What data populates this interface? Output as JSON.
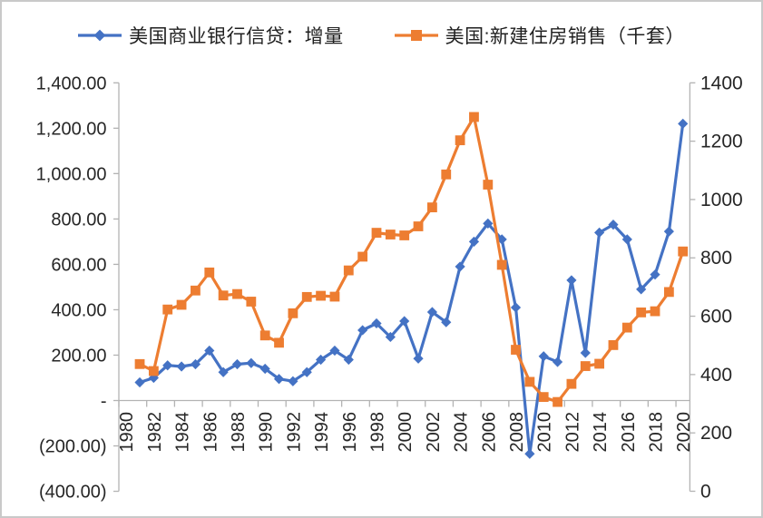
{
  "chart": {
    "background": "#ffffff",
    "border_color": "#c9c9c9",
    "text_color": "#262626",
    "axis_color": "#b3b3b3"
  },
  "legend": {
    "items": [
      {
        "label": "美国商业银行信贷：增量",
        "color": "#4472C4",
        "marker": "diamond"
      },
      {
        "label": "美国:新建住房销售（千套）",
        "color": "#ED7D31",
        "marker": "square"
      }
    ]
  },
  "axes": {
    "left": {
      "ticks": [
        {
          "label": "1,400.00",
          "value": 1400
        },
        {
          "label": "1,200.00",
          "value": 1200
        },
        {
          "label": "1,000.00",
          "value": 1000
        },
        {
          "label": "800.00",
          "value": 800
        },
        {
          "label": "600.00",
          "value": 600
        },
        {
          "label": "400.00",
          "value": 400
        },
        {
          "label": "200.00",
          "value": 200
        },
        {
          "label": "-",
          "value": 0
        },
        {
          "label": "(200.00)",
          "value": -200
        },
        {
          "label": "(400.00)",
          "value": -400
        }
      ]
    },
    "right": {
      "ticks": [
        {
          "label": "1400",
          "value": 1400
        },
        {
          "label": "1200",
          "value": 1200
        },
        {
          "label": "1000",
          "value": 1000
        },
        {
          "label": "800",
          "value": 800
        },
        {
          "label": "600",
          "value": 600
        },
        {
          "label": "400",
          "value": 400
        },
        {
          "label": "200",
          "value": 200
        },
        {
          "label": "0",
          "value": 0
        }
      ]
    },
    "x": {
      "labels": [
        "1980",
        "1982",
        "1984",
        "1986",
        "1988",
        "1990",
        "1992",
        "1994",
        "1996",
        "1998",
        "2000",
        "2002",
        "2004",
        "2006",
        "2008",
        "2010",
        "2012",
        "2014",
        "2016",
        "2018",
        "2020"
      ]
    }
  },
  "chart_data": {
    "type": "line",
    "title": "",
    "grid": false,
    "legend_position": "top",
    "x_categories": [
      1980,
      1981,
      1982,
      1983,
      1984,
      1985,
      1986,
      1987,
      1988,
      1989,
      1990,
      1991,
      1992,
      1993,
      1994,
      1995,
      1996,
      1997,
      1998,
      1999,
      2000,
      2001,
      2002,
      2003,
      2004,
      2005,
      2006,
      2007,
      2008,
      2009,
      2010,
      2011,
      2012,
      2013,
      2014,
      2015,
      2016,
      2017,
      2018,
      2019,
      2020
    ],
    "x": [
      1981,
      1982,
      1983,
      1984,
      1985,
      1986,
      1987,
      1988,
      1989,
      1990,
      1991,
      1992,
      1993,
      1994,
      1995,
      1996,
      1997,
      1998,
      1999,
      2000,
      2001,
      2002,
      2003,
      2004,
      2005,
      2006,
      2007,
      2008,
      2009,
      2010,
      2011,
      2012,
      2013,
      2014,
      2015,
      2016,
      2017,
      2018,
      2019,
      2020
    ],
    "left_ylim": [
      -400,
      1400
    ],
    "right_ylim": [
      0,
      1400
    ],
    "series": [
      {
        "name": "美国商业银行信贷：增量",
        "axis": "left",
        "color": "#4472C4",
        "marker": "diamond",
        "values": [
          80,
          100,
          155,
          150,
          160,
          220,
          125,
          160,
          165,
          140,
          95,
          85,
          125,
          180,
          220,
          180,
          310,
          340,
          280,
          350,
          185,
          390,
          345,
          590,
          700,
          780,
          710,
          410,
          -235,
          195,
          170,
          530,
          210,
          740,
          775,
          710,
          490,
          555,
          745,
          1220
        ]
      },
      {
        "name": "美国:新建住房销售（千套）",
        "axis": "right",
        "color": "#ED7D31",
        "marker": "square",
        "values": [
          436,
          412,
          623,
          639,
          688,
          750,
          671,
          676,
          650,
          534,
          509,
          610,
          666,
          670,
          667,
          757,
          804,
          886,
          880,
          877,
          908,
          973,
          1086,
          1203,
          1283,
          1051,
          776,
          485,
          375,
          323,
          306,
          368,
          429,
          437,
          501,
          561,
          613,
          617,
          683,
          822
        ]
      }
    ]
  }
}
